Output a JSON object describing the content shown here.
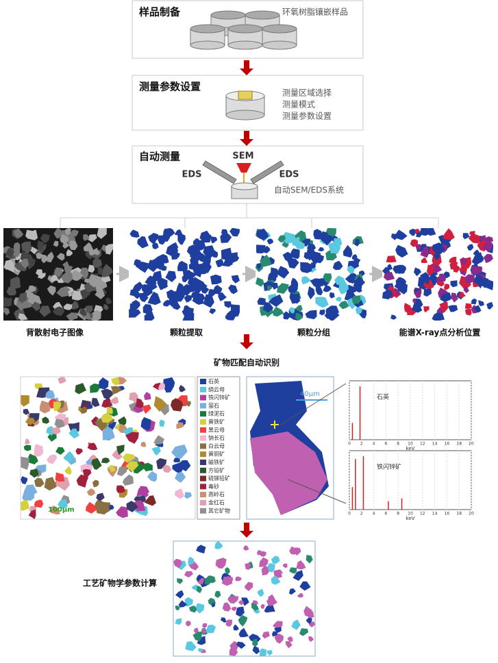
{
  "steps": [
    {
      "title": "样品制备",
      "notes": [
        "环氧树脂镶嵌样品"
      ]
    },
    {
      "title": "测量参数设置",
      "notes": [
        "测量区域选择",
        "测量模式",
        "测量参数设置"
      ]
    },
    {
      "title": "自动测量",
      "sem": "SEM",
      "eds_left": "EDS",
      "eds_right": "EDS",
      "notes": [
        "自动SEM/EDS系统"
      ]
    }
  ],
  "images": [
    "背散射电子图像",
    "颗粒提取",
    "颗粒分组",
    "能谱X-ray点分析位置"
  ],
  "match": {
    "title": "矿物匹配自动识别",
    "scale_map": "100μm",
    "scale_bse": "40μm",
    "legend": [
      "石英",
      "绢云母",
      "铁闪锌矿",
      "萤石",
      "绿泥石",
      "黄铁矿",
      "黑云母",
      "钠长石",
      "白云母",
      "黄铜矿",
      "磁铁矿",
      "方铅矿",
      "硫锑铅矿",
      "毒砂",
      "高岭石",
      "金红石",
      "其它矿物"
    ],
    "spectra": [
      {
        "label": "石英"
      },
      {
        "label": "铁闪锌矿"
      }
    ],
    "spectra_x_label": "keV",
    "spectra_xticks": [
      0,
      2,
      4,
      6,
      8,
      10,
      12,
      14,
      16,
      18,
      20
    ]
  },
  "final": {
    "title": "工艺矿物学参数计算"
  }
}
